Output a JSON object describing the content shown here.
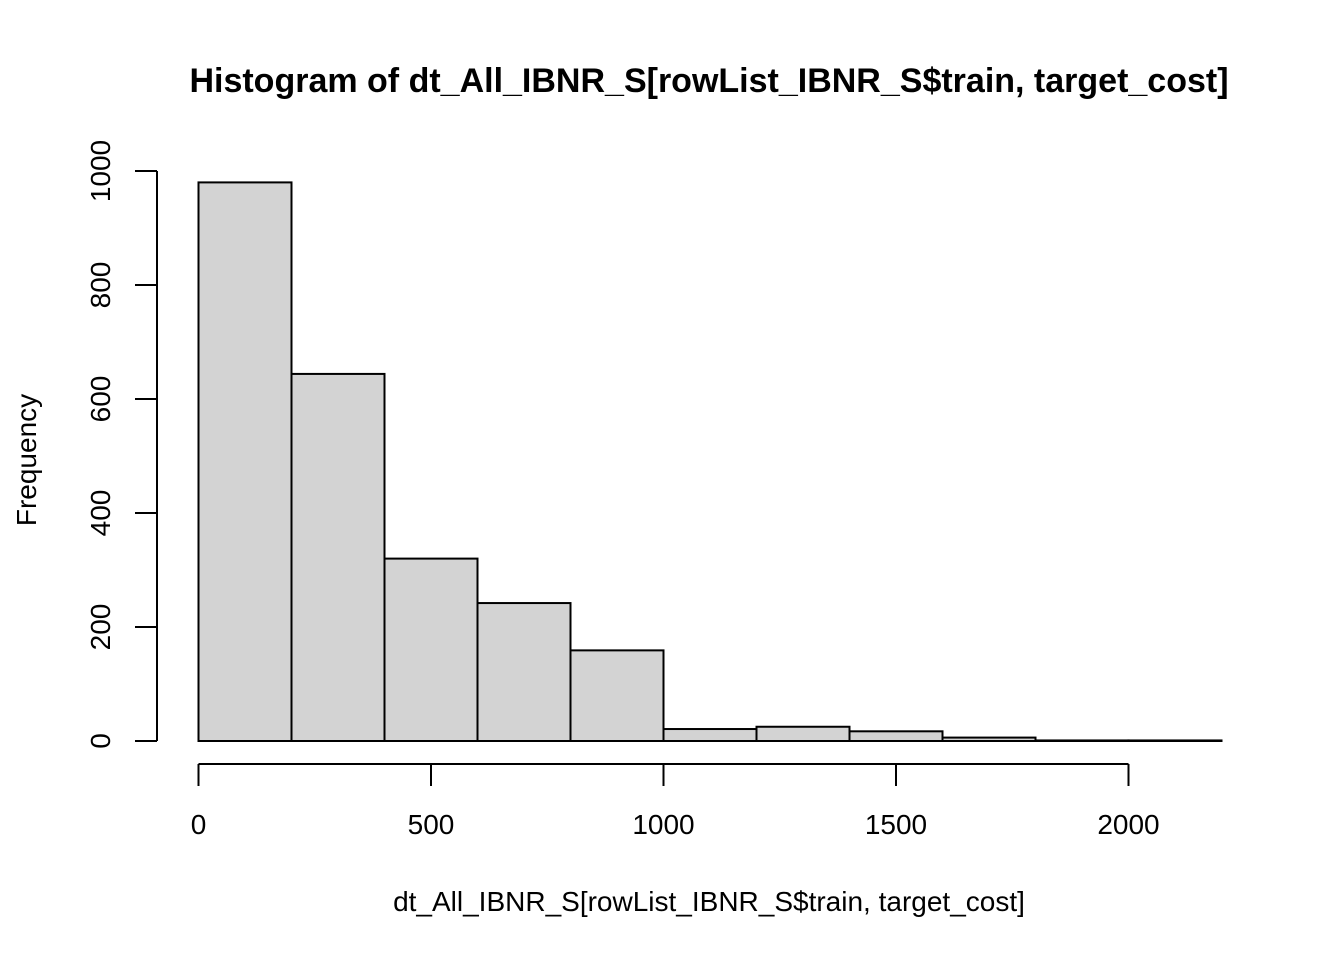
{
  "chart_data": {
    "type": "bar",
    "title": "Histogram of dt_All_IBNR_S[rowList_IBNR_S$train, target_cost]",
    "xlabel": "dt_All_IBNR_S[rowList_IBNR_S$train, target_cost]",
    "ylabel": "Frequency",
    "bins": [
      {
        "from": 0,
        "to": 200,
        "count": 980
      },
      {
        "from": 200,
        "to": 400,
        "count": 644
      },
      {
        "from": 400,
        "to": 600,
        "count": 320
      },
      {
        "from": 600,
        "to": 800,
        "count": 242
      },
      {
        "from": 800,
        "to": 1000,
        "count": 159
      },
      {
        "from": 1000,
        "to": 1200,
        "count": 21
      },
      {
        "from": 1200,
        "to": 1400,
        "count": 25
      },
      {
        "from": 1400,
        "to": 1600,
        "count": 17
      },
      {
        "from": 1600,
        "to": 1800,
        "count": 6
      },
      {
        "from": 1800,
        "to": 2000,
        "count": 1
      },
      {
        "from": 2000,
        "to": 2200,
        "count": 1
      }
    ],
    "xlim": [
      0,
      2200
    ],
    "ylim": [
      0,
      1000
    ],
    "x_ticks": [
      0,
      500,
      1000,
      1500,
      2000
    ],
    "y_ticks": [
      0,
      200,
      400,
      600,
      800,
      1000
    ],
    "grid": false,
    "bar_color": "#d3d3d3",
    "edge_color": "#000000"
  }
}
